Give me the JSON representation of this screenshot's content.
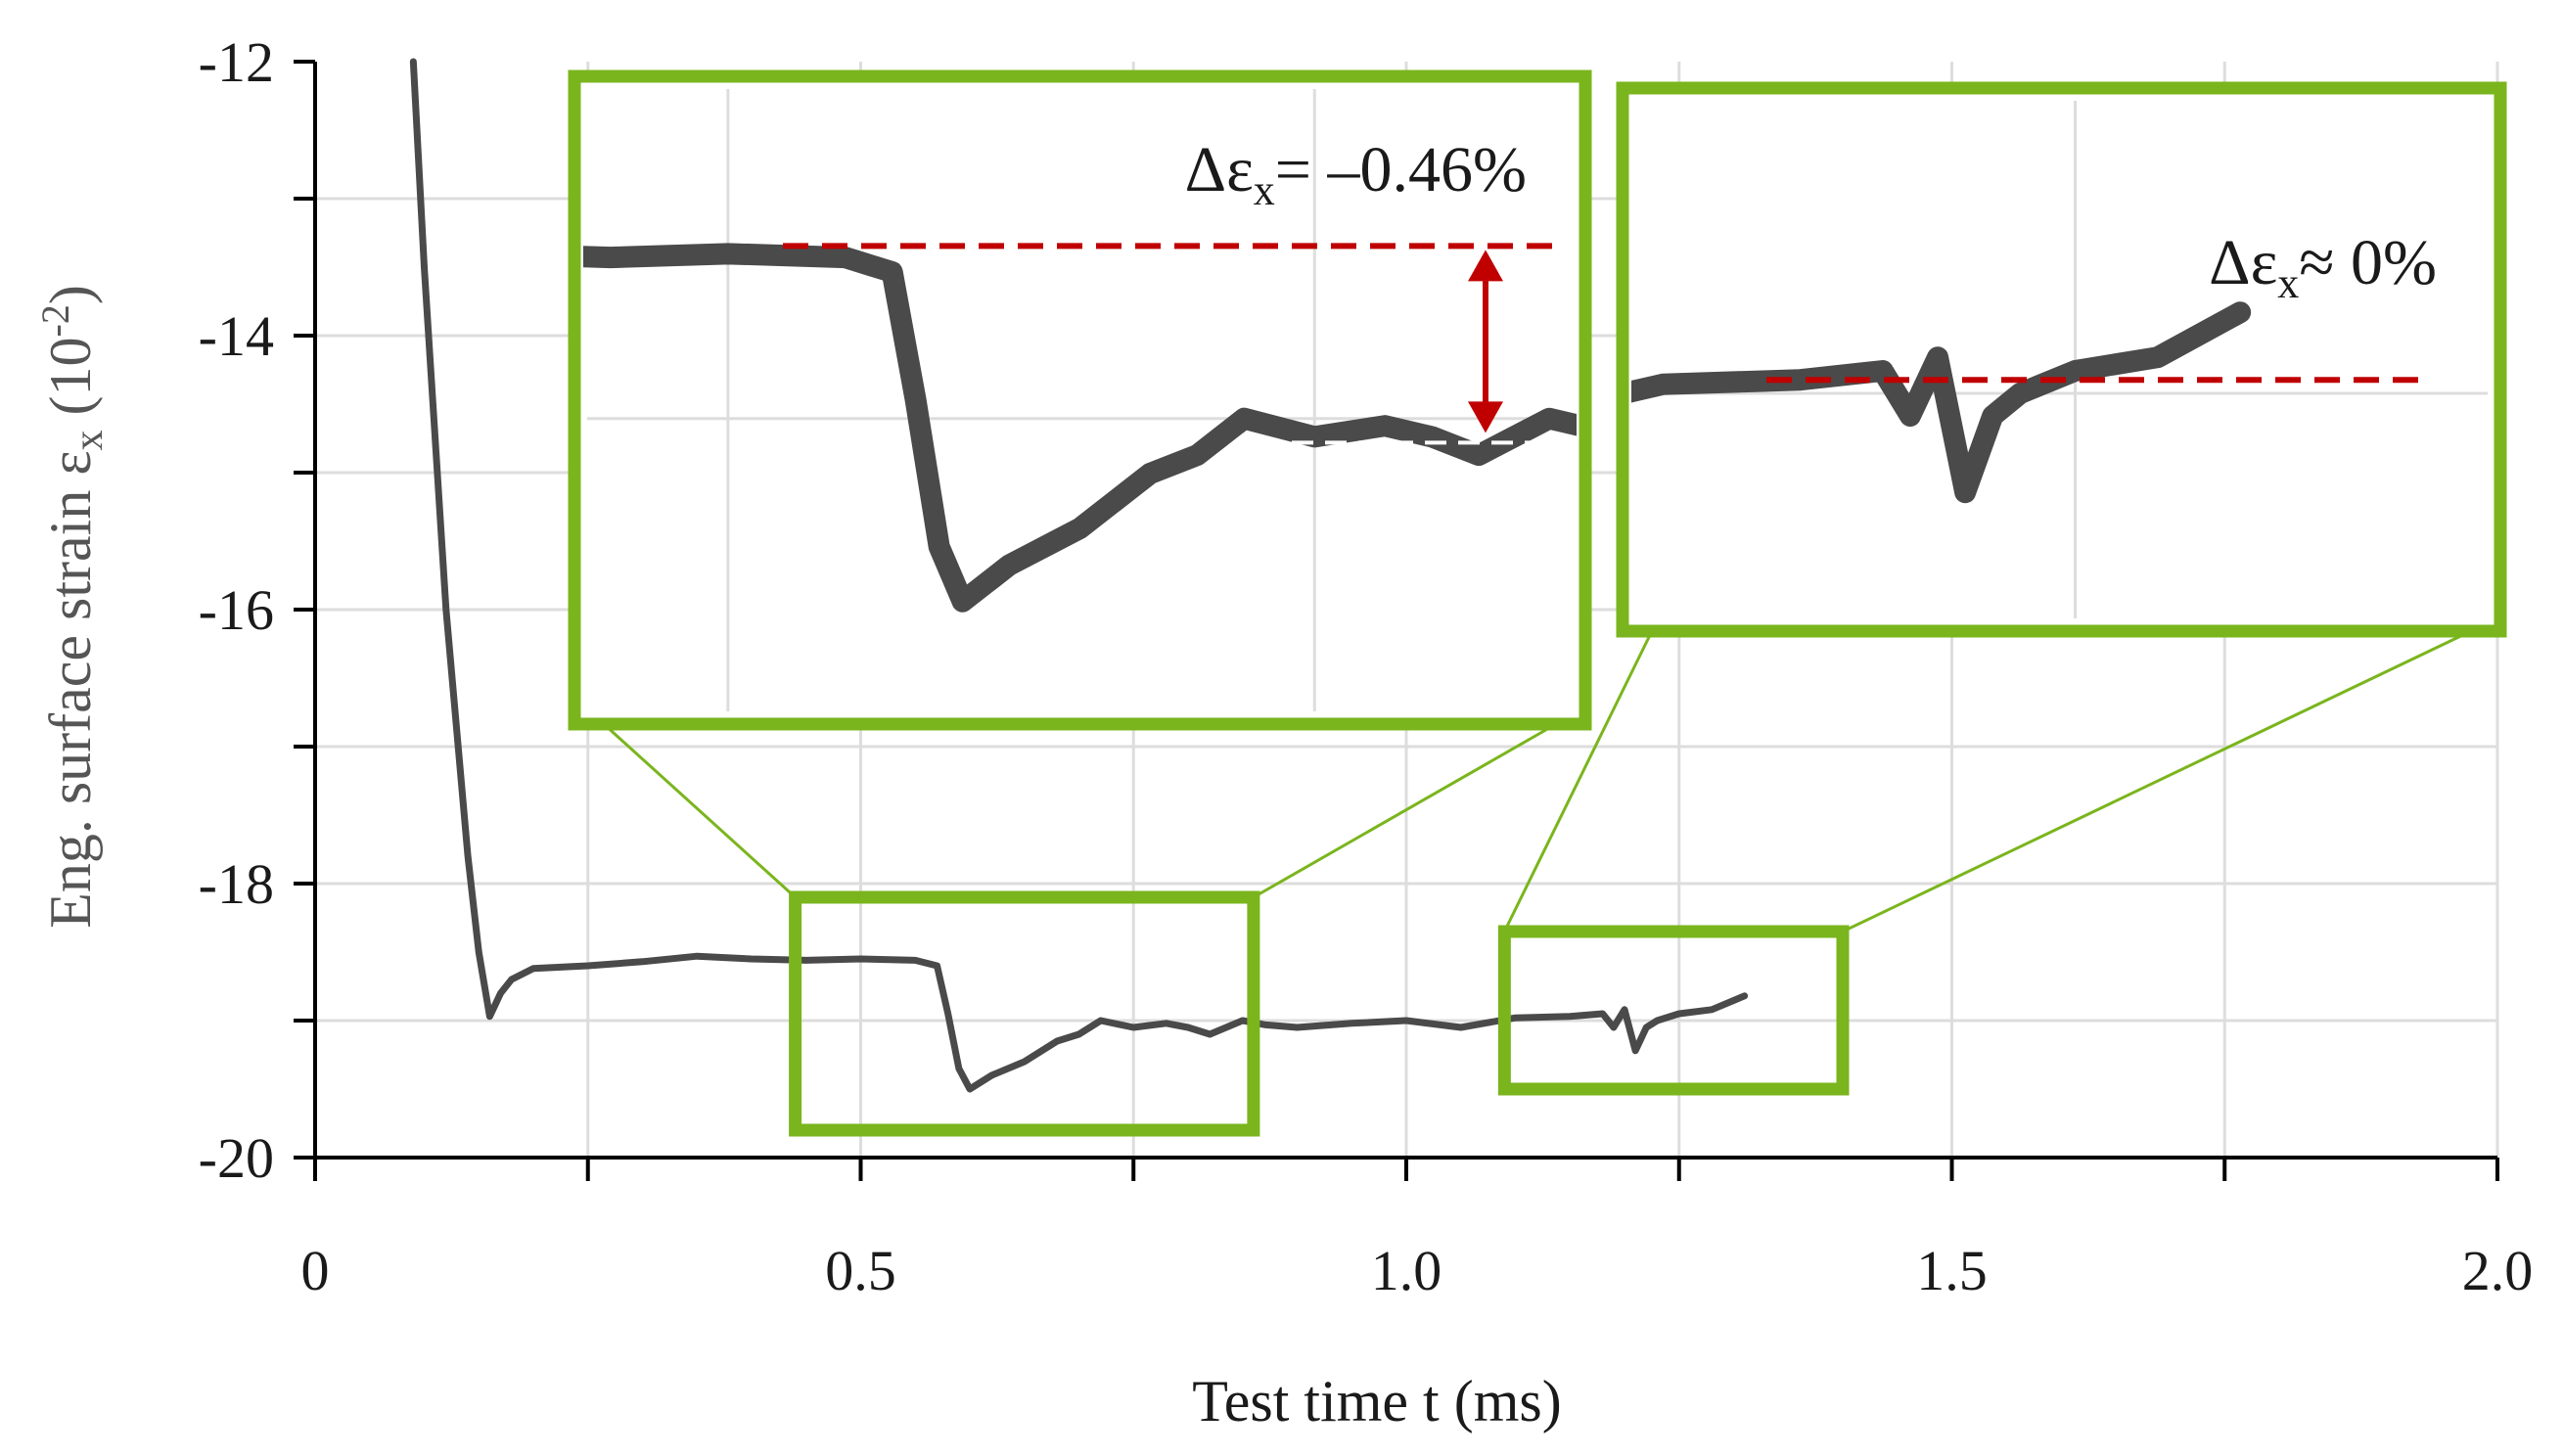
{
  "chart_data": {
    "type": "line",
    "title": "",
    "xlabel": "Test time t (ms)",
    "ylabel_parts": {
      "main": "Eng. surface strain ε",
      "sub": "x",
      "unit_open": " (10",
      "unit_exp": "-2",
      "unit_close": ")"
    },
    "xlim": [
      0,
      2.0
    ],
    "ylim": [
      -20,
      -12
    ],
    "x_ticks": [
      0,
      0.5,
      1.0,
      1.5,
      2.0
    ],
    "x_tick_labels": [
      "0",
      "0.5",
      "1.0",
      "1.5",
      "2.0"
    ],
    "y_ticks": [
      -20,
      -18,
      -16,
      -14,
      -12
    ],
    "y_tick_labels": [
      "-20",
      "-18",
      "-16",
      "-14",
      "-12"
    ],
    "grid": true,
    "series": [
      {
        "name": "surface strain",
        "color": "#4a4a4a",
        "x": [
          0.09,
          0.1,
          0.12,
          0.14,
          0.15,
          0.16,
          0.17,
          0.18,
          0.2,
          0.25,
          0.3,
          0.35,
          0.4,
          0.45,
          0.5,
          0.55,
          0.57,
          0.58,
          0.59,
          0.6,
          0.62,
          0.65,
          0.68,
          0.7,
          0.72,
          0.75,
          0.78,
          0.8,
          0.82,
          0.85,
          0.87,
          0.9,
          0.95,
          1.0,
          1.05,
          1.1,
          1.15,
          1.18,
          1.19,
          1.2,
          1.21,
          1.22,
          1.23,
          1.25,
          1.28,
          1.31
        ],
        "y": [
          -12.0,
          -13.5,
          -16.0,
          -17.8,
          -18.5,
          -18.97,
          -18.8,
          -18.7,
          -18.62,
          -18.6,
          -18.57,
          -18.53,
          -18.55,
          -18.56,
          -18.55,
          -18.56,
          -18.6,
          -18.95,
          -19.35,
          -19.5,
          -19.4,
          -19.3,
          -19.15,
          -19.1,
          -19.0,
          -19.05,
          -19.02,
          -19.05,
          -19.1,
          -19.0,
          -19.03,
          -19.05,
          -19.02,
          -19.0,
          -19.05,
          -18.98,
          -18.97,
          -18.95,
          -19.05,
          -18.92,
          -19.22,
          -19.05,
          -19.0,
          -18.95,
          -18.92,
          -18.82
        ]
      }
    ],
    "zoom_boxes": [
      {
        "name": "zoom-1",
        "range_x": [
          0.44,
          0.86
        ],
        "range_y": [
          -19.8,
          -18.1
        ],
        "annotation": {
          "prefix": "Δε",
          "sub": "x",
          "rest": "= –0.46%",
          "delta_percent": -0.46
        }
      },
      {
        "name": "zoom-2",
        "range_x": [
          1.09,
          1.4
        ],
        "range_y": [
          -19.5,
          -18.35
        ],
        "annotation": {
          "prefix": "Δε",
          "sub": "x",
          "rest": "≈ 0%",
          "delta_percent": 0
        }
      }
    ],
    "colors": {
      "line": "#4a4a4a",
      "zoom_frame": "#7ab51d",
      "reference": "#c00000",
      "grid": "#dddddd",
      "axis": "#000000"
    }
  }
}
